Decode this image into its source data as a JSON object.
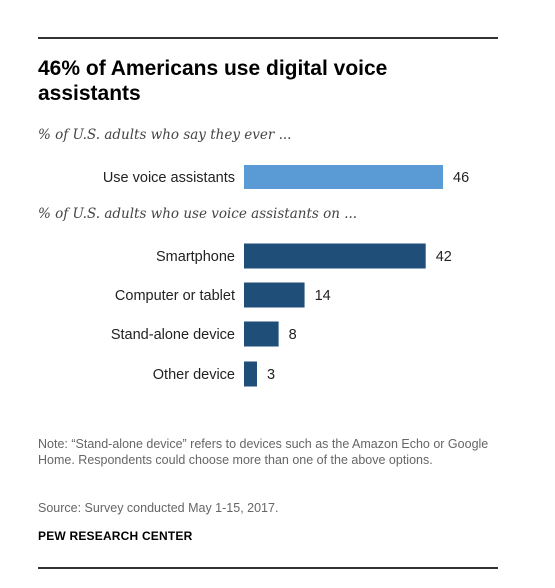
{
  "title": "46% of Americans use digital voice assistants",
  "subtitle_1": "% of U.S. adults who say they ever ...",
  "subtitle_2": "% of U.S. adults who use voice assistants on ...",
  "note": "Note: “Stand-alone device” refers to devices such as the Amazon Echo or Google Home. Respondents could choose more than one of the above options.",
  "source": "Source: Survey conducted May 1-15, 2017.",
  "credit": "PEW RESEARCH CENTER",
  "colors": {
    "light_bar": "#5b9bd5",
    "dark_bar": "#1f4e79"
  },
  "chart_data": [
    {
      "type": "bar",
      "orientation": "horizontal",
      "title": "% of U.S. adults who say they ever ...",
      "categories": [
        "Use voice assistants"
      ],
      "values": [
        46
      ],
      "unit": "%"
    },
    {
      "type": "bar",
      "orientation": "horizontal",
      "title": "% of U.S. adults who use voice assistants on ...",
      "categories": [
        "Smartphone",
        "Computer or tablet",
        "Stand-alone device",
        "Other device"
      ],
      "values": [
        42,
        14,
        8,
        3
      ],
      "unit": "%"
    }
  ]
}
